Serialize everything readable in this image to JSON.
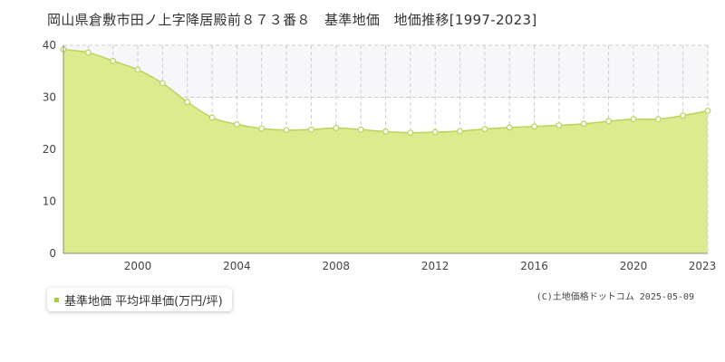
{
  "title": "岡山県倉敷市田ノ上字降居殿前８７３番８　基準地価　地価推移[1997-2023]",
  "legend_label": "基準地価 平均坪単価(万円/坪)",
  "credit": "(C)土地価格ドットコム 2025-05-09",
  "colors": {
    "fill": "#dbeb8e",
    "line": "#b8d45a",
    "marker_fill": "#ffffff",
    "legend_swatch": "#a6cf3b",
    "grid": "#cccccc",
    "upper_band": "#f7f7fa"
  },
  "chart_data": {
    "type": "area",
    "x": [
      1997,
      1998,
      1999,
      2000,
      2001,
      2002,
      2003,
      2004,
      2005,
      2006,
      2007,
      2008,
      2009,
      2010,
      2011,
      2012,
      2013,
      2014,
      2015,
      2016,
      2017,
      2018,
      2019,
      2020,
      2021,
      2022,
      2023
    ],
    "series": [
      {
        "name": "基準地価 平均坪単価(万円/坪)",
        "values": [
          39.2,
          38.6,
          37.0,
          35.3,
          32.7,
          29.1,
          26.1,
          24.8,
          24.0,
          23.7,
          23.8,
          24.1,
          23.8,
          23.4,
          23.2,
          23.3,
          23.5,
          23.9,
          24.2,
          24.4,
          24.6,
          24.9,
          25.4,
          25.8,
          25.8,
          26.5,
          27.4
        ]
      }
    ],
    "xticks": [
      2000,
      2004,
      2008,
      2012,
      2016,
      2020,
      2023
    ],
    "yticks": [
      0,
      10,
      20,
      30,
      40
    ],
    "xlim": [
      1997,
      2023
    ],
    "ylim": [
      0,
      40
    ],
    "grid": true,
    "legend": "bottom-left"
  }
}
